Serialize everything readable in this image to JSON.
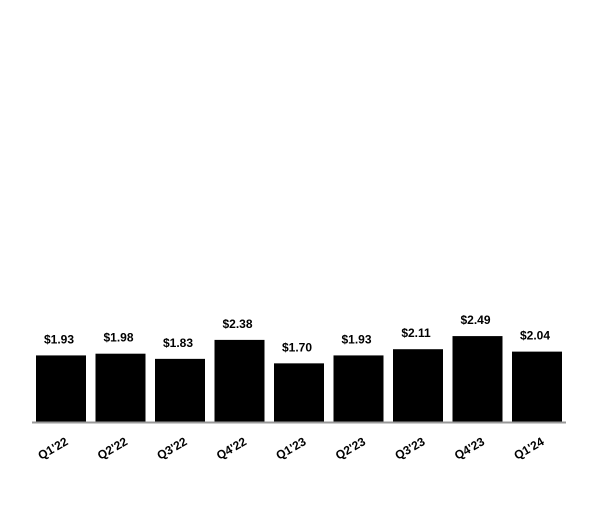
{
  "chart_data": {
    "type": "bar",
    "categories": [
      "Q1'22",
      "Q2'22",
      "Q3'22",
      "Q4'22",
      "Q1'23",
      "Q2'23",
      "Q3'23",
      "Q4'23",
      "Q1'24"
    ],
    "values": [
      1.93,
      1.98,
      1.83,
      2.38,
      1.7,
      1.93,
      2.11,
      2.49,
      2.04
    ],
    "value_labels": [
      "$1.93",
      "$1.98",
      "$1.83",
      "$2.38",
      "$1.70",
      "$1.93",
      "$2.11",
      "$2.49",
      "$2.04"
    ],
    "color": "#000000"
  }
}
